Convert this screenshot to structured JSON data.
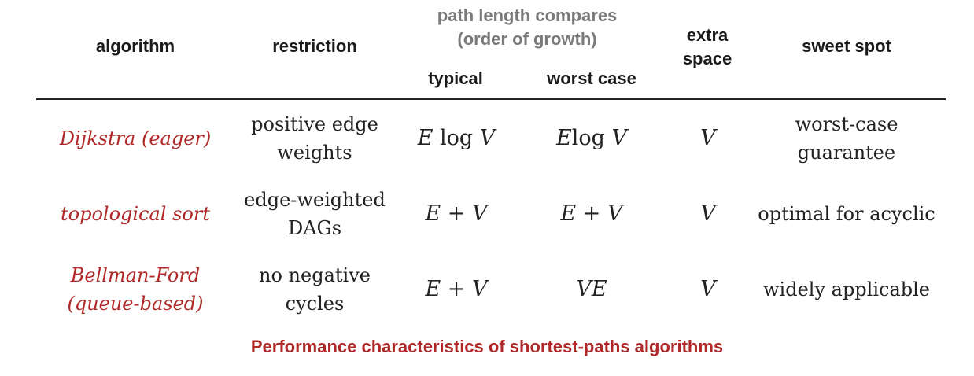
{
  "headers": {
    "algorithm": "algorithm",
    "restriction": "restriction",
    "path_length_line1": "path length compares",
    "path_length_line2": "(order of growth)",
    "typical": "typical",
    "worst_case": "worst case",
    "extra_line1": "extra",
    "extra_line2": "space",
    "sweet_spot": "sweet spot"
  },
  "rows": [
    {
      "algorithm": [
        "Dijkstra (eager)"
      ],
      "restriction": [
        "positive edge",
        "weights"
      ],
      "typical": {
        "a": "E",
        "op": " log ",
        "b": "V"
      },
      "worst": {
        "a": "E",
        "op": "log ",
        "b": "V"
      },
      "space": "V",
      "sweet": [
        "worst-case",
        "guarantee"
      ]
    },
    {
      "algorithm": [
        "topological sort"
      ],
      "restriction": [
        "edge-weighted",
        "DAGs"
      ],
      "typical": {
        "a": "E",
        "op": " + ",
        "b": "V"
      },
      "worst": {
        "a": "E",
        "op": " + ",
        "b": "V"
      },
      "space": "V",
      "sweet": [
        "optimal for acyclic"
      ]
    },
    {
      "algorithm": [
        "Bellman-Ford",
        "(queue-based)"
      ],
      "restriction": [
        "no negative",
        "cycles"
      ],
      "typical": {
        "a": "E",
        "op": " + ",
        "b": "V"
      },
      "worst": {
        "a": "VE",
        "op": "",
        "b": ""
      },
      "space": "V",
      "sweet": [
        "widely applicable"
      ]
    }
  ],
  "caption": "Performance characteristics of shortest-paths algorithms"
}
